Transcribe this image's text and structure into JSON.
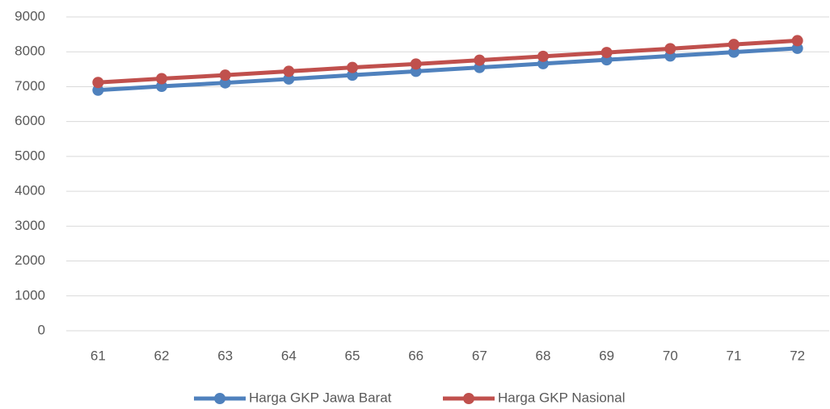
{
  "chart_data": {
    "type": "line",
    "categories": [
      "61",
      "62",
      "63",
      "64",
      "65",
      "66",
      "67",
      "68",
      "69",
      "70",
      "71",
      "72"
    ],
    "series": [
      {
        "name": "Harga GKP Jawa Barat",
        "color": "#4f81bd",
        "values": [
          6900,
          7010,
          7110,
          7220,
          7330,
          7440,
          7550,
          7660,
          7770,
          7880,
          7990,
          8100
        ]
      },
      {
        "name": "Harga GKP Nasional",
        "color": "#c0504d",
        "values": [
          7120,
          7230,
          7330,
          7440,
          7550,
          7650,
          7760,
          7870,
          7980,
          8090,
          8210,
          8320
        ]
      }
    ],
    "ylim": [
      0,
      9000
    ],
    "yticks": [
      0,
      1000,
      2000,
      3000,
      4000,
      5000,
      6000,
      7000,
      8000,
      9000
    ],
    "grid": true,
    "legend": "bottom"
  }
}
